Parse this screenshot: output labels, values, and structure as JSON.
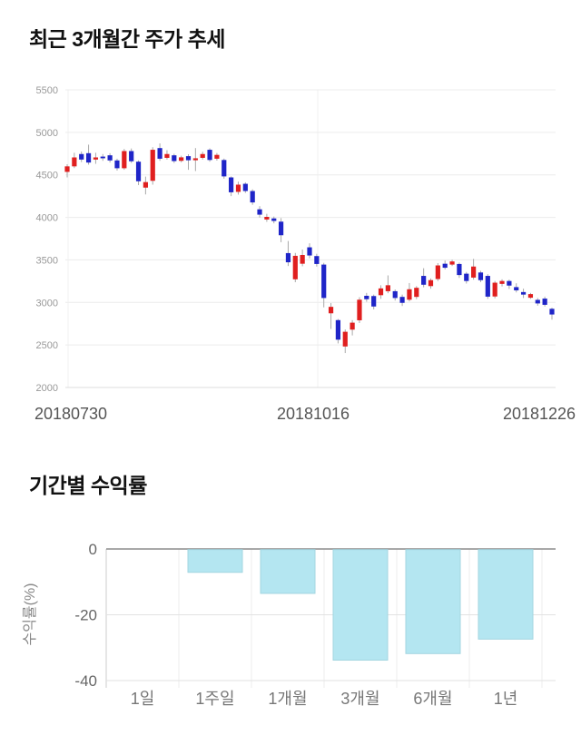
{
  "page_background": "#ffffff",
  "chart_data": [
    {
      "type": "candlestick",
      "title": "최근 3개월간 주가 추세",
      "x_tick_labels": [
        "20180730",
        "20181016",
        "20181226"
      ],
      "y_ticks": [
        5500,
        5000,
        4500,
        4000,
        3500,
        3000,
        2500,
        2000
      ],
      "ylim": [
        2000,
        5500
      ],
      "grid": true,
      "legend": "none",
      "up_color": "#e01f1f",
      "down_color": "#1f25c8",
      "wick_color": "#a9a9a9",
      "candles_ohlc": [
        [
          4535,
          4625,
          4470,
          4600
        ],
        [
          4600,
          4760,
          4580,
          4705
        ],
        [
          4745,
          4775,
          4650,
          4680
        ],
        [
          4755,
          4855,
          4620,
          4645
        ],
        [
          4680,
          4760,
          4630,
          4705
        ],
        [
          4715,
          4745,
          4665,
          4695
        ],
        [
          4730,
          4755,
          4645,
          4670
        ],
        [
          4670,
          4690,
          4550,
          4578
        ],
        [
          4578,
          4805,
          4560,
          4780
        ],
        [
          4780,
          4810,
          4640,
          4660
        ],
        [
          4655,
          4670,
          4380,
          4425
        ],
        [
          4350,
          4480,
          4270,
          4415
        ],
        [
          4430,
          4825,
          4385,
          4795
        ],
        [
          4815,
          4870,
          4665,
          4690
        ],
        [
          4700,
          4790,
          4680,
          4745
        ],
        [
          4730,
          4748,
          4640,
          4662
        ],
        [
          4665,
          4725,
          4648,
          4706
        ],
        [
          4720,
          4742,
          4560,
          4672
        ],
        [
          4672,
          4815,
          4545,
          4695
        ],
        [
          4700,
          4772,
          4680,
          4745
        ],
        [
          4795,
          4812,
          4655,
          4675
        ],
        [
          4690,
          4757,
          4668,
          4735
        ],
        [
          4675,
          4692,
          4455,
          4482
        ],
        [
          4470,
          4482,
          4250,
          4295
        ],
        [
          4300,
          4420,
          4268,
          4385
        ],
        [
          4395,
          4412,
          4288,
          4310
        ],
        [
          4310,
          4330,
          4148,
          4176
        ],
        [
          4095,
          4132,
          3998,
          4032
        ],
        [
          3975,
          4042,
          3948,
          4006
        ],
        [
          3988,
          4010,
          3930,
          3958
        ],
        [
          3950,
          3992,
          3708,
          3790
        ],
        [
          3580,
          3722,
          3428,
          3472
        ],
        [
          3272,
          3582,
          3238,
          3548
        ],
        [
          3455,
          3622,
          3425,
          3558
        ],
        [
          3648,
          3695,
          3518,
          3552
        ],
        [
          3545,
          3572,
          3422,
          3452
        ],
        [
          3445,
          3465,
          2942,
          3052
        ],
        [
          2872,
          2992,
          2688,
          2948
        ],
        [
          2792,
          2805,
          2518,
          2562
        ],
        [
          2482,
          2682,
          2405,
          2655
        ],
        [
          2680,
          2792,
          2612,
          2762
        ],
        [
          2790,
          3062,
          2758,
          3032
        ],
        [
          3078,
          3112,
          3008,
          3038
        ],
        [
          3075,
          3092,
          2918,
          2952
        ],
        [
          3085,
          3202,
          3042,
          3165
        ],
        [
          3132,
          3318,
          3108,
          3202
        ],
        [
          3132,
          3152,
          3022,
          3052
        ],
        [
          3065,
          3092,
          2958,
          2995
        ],
        [
          3032,
          3228,
          3012,
          3155
        ],
        [
          3065,
          3192,
          3038,
          3172
        ],
        [
          3312,
          3402,
          3178,
          3208
        ],
        [
          3192,
          3282,
          3162,
          3262
        ],
        [
          3275,
          3462,
          3252,
          3435
        ],
        [
          3455,
          3492,
          3388,
          3408
        ],
        [
          3445,
          3502,
          3428,
          3482
        ],
        [
          3452,
          3468,
          3288,
          3322
        ],
        [
          3338,
          3358,
          3222,
          3252
        ],
        [
          3292,
          3512,
          3268,
          3422
        ],
        [
          3352,
          3372,
          3238,
          3262
        ],
        [
          3312,
          3332,
          3042,
          3068
        ],
        [
          3070,
          3252,
          3048,
          3232
        ],
        [
          3218,
          3272,
          3188,
          3252
        ],
        [
          3252,
          3268,
          3158,
          3198
        ],
        [
          3180,
          3225,
          3118,
          3142
        ],
        [
          3122,
          3162,
          3052,
          3092
        ],
        [
          3055,
          3112,
          3042,
          3098
        ],
        [
          3030,
          3052,
          2962,
          2988
        ],
        [
          3045,
          3068,
          2952,
          2972
        ],
        [
          2925,
          2938,
          2798,
          2858
        ]
      ]
    },
    {
      "type": "bar",
      "title": "기간별 수익률",
      "ylabel": "수익률(%)",
      "categories": [
        "1일",
        "1주일",
        "1개월",
        "3개월",
        "6개월",
        "1년"
      ],
      "values": [
        0,
        -7.1,
        -13.5,
        -33.8,
        -31.8,
        -27.4
      ],
      "y_ticks": [
        0,
        -20,
        -40
      ],
      "ylim": [
        -40,
        0
      ],
      "grid": true,
      "legend": "none",
      "bar_color": "#b4e6f1",
      "bar_border": "#a3d5e0"
    }
  ]
}
